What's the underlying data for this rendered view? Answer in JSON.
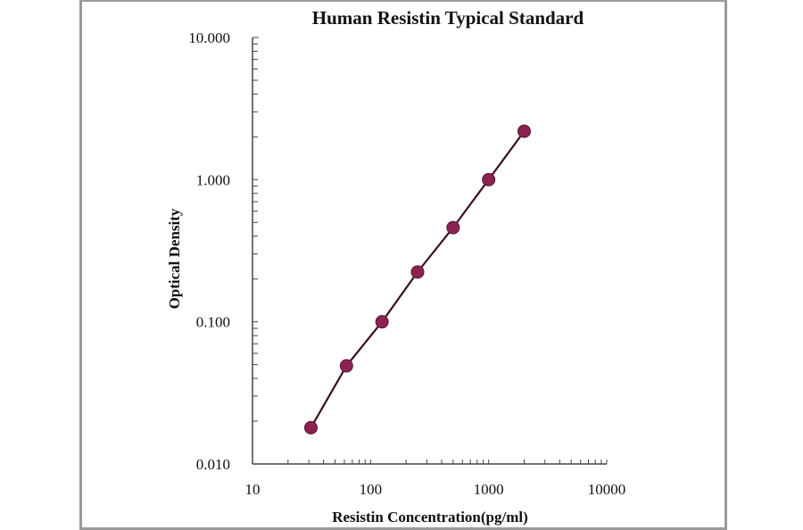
{
  "chart_data": {
    "type": "line",
    "title": "Human  Resistin Typical Standard",
    "xlabel": "Resistin Concentration(pg/ml)",
    "ylabel": "Optical  Density",
    "xscale": "log",
    "yscale": "log",
    "xlim": [
      10,
      10000
    ],
    "ylim": [
      0.01,
      10
    ],
    "x_ticks": [
      "10",
      "100",
      "1000",
      "10000"
    ],
    "y_ticks": [
      "0.010",
      "0.100",
      "1.000",
      "10.000"
    ],
    "grid": false,
    "legend": null,
    "series": [
      {
        "name": "Standard",
        "color": "#8b2252",
        "line_color": "#3a0f22",
        "x": [
          31.25,
          62.5,
          125,
          250,
          500,
          1000,
          2000
        ],
        "y": [
          0.018,
          0.049,
          0.1,
          0.224,
          0.46,
          1.0,
          2.19
        ]
      }
    ]
  }
}
